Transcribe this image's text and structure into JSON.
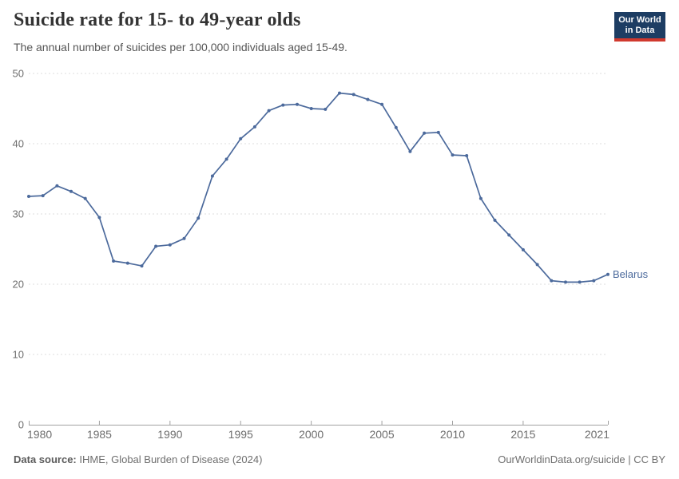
{
  "header": {
    "logo": {
      "line1": "Our World",
      "line2": "in Data"
    }
  },
  "chart_data": {
    "type": "line",
    "title": "Suicide rate for 15- to 49-year olds",
    "subtitle": "The annual number of suicides per 100,000 individuals aged 15-49.",
    "xlabel": "",
    "ylabel": "",
    "xlim": [
      1980,
      2021
    ],
    "ylim": [
      0,
      50
    ],
    "x_ticks": [
      1980,
      1985,
      1990,
      1995,
      2000,
      2005,
      2010,
      2015,
      2021
    ],
    "y_ticks": [
      0,
      10,
      20,
      30,
      40,
      50
    ],
    "grid": "horizontal-dashed",
    "legend_position": "line-end-label",
    "series": [
      {
        "name": "Belarus",
        "color": "#4C6A9C",
        "x": [
          1980,
          1981,
          1982,
          1983,
          1984,
          1985,
          1986,
          1987,
          1988,
          1989,
          1990,
          1991,
          1992,
          1993,
          1994,
          1995,
          1996,
          1997,
          1998,
          1999,
          2000,
          2001,
          2002,
          2003,
          2004,
          2005,
          2006,
          2007,
          2008,
          2009,
          2010,
          2011,
          2012,
          2013,
          2014,
          2015,
          2016,
          2017,
          2018,
          2019,
          2020,
          2021
        ],
        "values": [
          32.5,
          32.6,
          34,
          33.2,
          32.2,
          29.5,
          23.3,
          23,
          22.6,
          25.4,
          25.6,
          26.5,
          29.4,
          35.4,
          37.8,
          40.7,
          42.4,
          44.7,
          45.5,
          45.6,
          45,
          44.9,
          47.2,
          47,
          46.3,
          45.6,
          42.3,
          38.9,
          41.5,
          41.6,
          38.4,
          38.3,
          32.2,
          29.1,
          27,
          24.9,
          22.8,
          20.5,
          20.3,
          20.3,
          20.5,
          21.4
        ]
      }
    ]
  },
  "footer": {
    "datasource_label": "Data source:",
    "datasource_value": " IHME, Global Burden of Disease (2024)",
    "credit": "OurWorldinData.org/suicide | CC BY"
  },
  "colors": {
    "line": "#4C6A9C",
    "grid": "#dddddd",
    "axis": "#a1a1a1",
    "axis_label": "#6e6e6e",
    "background": "#ffffff",
    "logo_bg": "#1d3d63",
    "logo_stripe": "#d0392e"
  }
}
